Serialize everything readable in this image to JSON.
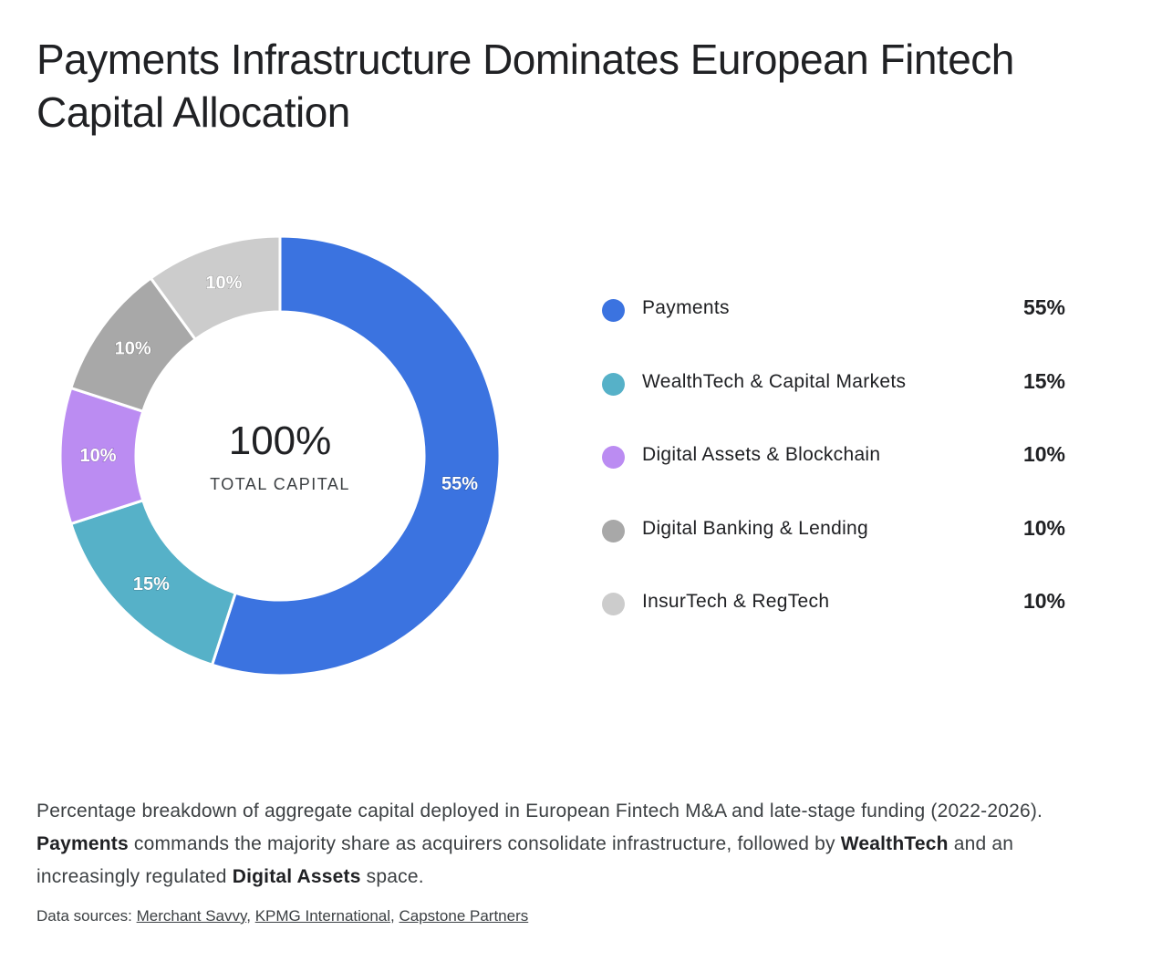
{
  "title": "Payments Infrastructure Dominates European Fintech Capital Allocation",
  "center": {
    "value": "100%",
    "label": "TOTAL CAPITAL"
  },
  "chart_data": {
    "type": "pie",
    "variant": "donut",
    "categories": [
      "Payments",
      "WealthTech & Capital Markets",
      "Digital Assets & Blockchain",
      "Digital Banking & Lending",
      "InsurTech & RegTech"
    ],
    "values": [
      55,
      15,
      10,
      10,
      10
    ],
    "labels": [
      "55%",
      "15%",
      "10%",
      "10%",
      "10%"
    ],
    "colors": [
      "#3b73e0",
      "#56b1c8",
      "#bb8cf2",
      "#a8a8a8",
      "#cccccc"
    ],
    "legend_placement": "right"
  },
  "caption": {
    "p1": "Percentage breakdown of aggregate capital deployed in European Fintech M&A and late-stage funding (2022-2026). ",
    "b1": "Payments",
    "p2": " commands the majority share as acquirers consolidate infrastructure, followed by ",
    "b2": "WealthTech",
    "p3": " and an increasingly regulated ",
    "b3": "Digital Assets",
    "p4": " space."
  },
  "sources": {
    "prefix": "Data sources: ",
    "links": [
      "Merchant Savvy",
      "KPMG International",
      "Capstone Partners"
    ]
  }
}
